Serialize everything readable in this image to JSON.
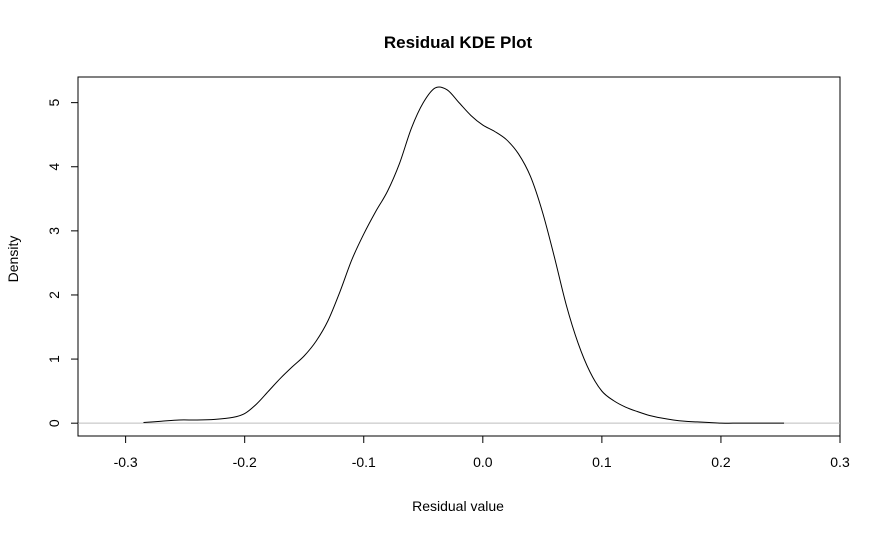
{
  "chart_data": {
    "type": "line",
    "title": "Residual KDE Plot",
    "xlabel": "Residual value",
    "ylabel": "Density",
    "xlim": [
      -0.34,
      0.3
    ],
    "ylim": [
      -0.2,
      5.4
    ],
    "xticks": [
      -0.3,
      -0.2,
      -0.1,
      0.0,
      0.1,
      0.2,
      0.3
    ],
    "xtick_labels": [
      "-0.3",
      "-0.2",
      "-0.1",
      "0.0",
      "0.1",
      "0.2",
      "0.3"
    ],
    "yticks": [
      0,
      1,
      2,
      3,
      4,
      5
    ],
    "ytick_labels": [
      "0",
      "1",
      "2",
      "3",
      "4",
      "5"
    ],
    "baseline": 0,
    "series": [
      {
        "name": "density",
        "color": "#000000",
        "x": [
          -0.285,
          -0.27,
          -0.255,
          -0.24,
          -0.225,
          -0.21,
          -0.2,
          -0.19,
          -0.18,
          -0.17,
          -0.16,
          -0.15,
          -0.14,
          -0.13,
          -0.12,
          -0.11,
          -0.1,
          -0.09,
          -0.08,
          -0.07,
          -0.06,
          -0.05,
          -0.04,
          -0.03,
          -0.02,
          -0.01,
          0.0,
          0.01,
          0.02,
          0.03,
          0.04,
          0.05,
          0.06,
          0.07,
          0.08,
          0.09,
          0.1,
          0.11,
          0.12,
          0.13,
          0.14,
          0.15,
          0.16,
          0.17,
          0.18,
          0.19,
          0.2,
          0.21,
          0.22,
          0.23,
          0.24,
          0.253
        ],
        "values": [
          0.01,
          0.03,
          0.05,
          0.05,
          0.06,
          0.09,
          0.15,
          0.3,
          0.5,
          0.7,
          0.88,
          1.05,
          1.28,
          1.6,
          2.05,
          2.55,
          2.95,
          3.3,
          3.62,
          4.05,
          4.6,
          5.0,
          5.23,
          5.2,
          5.0,
          4.8,
          4.65,
          4.55,
          4.42,
          4.2,
          3.85,
          3.3,
          2.6,
          1.85,
          1.25,
          0.8,
          0.5,
          0.35,
          0.25,
          0.18,
          0.12,
          0.08,
          0.05,
          0.03,
          0.02,
          0.01,
          0.0,
          0.0,
          0.0,
          0.0,
          0.0,
          0.0
        ]
      }
    ]
  }
}
